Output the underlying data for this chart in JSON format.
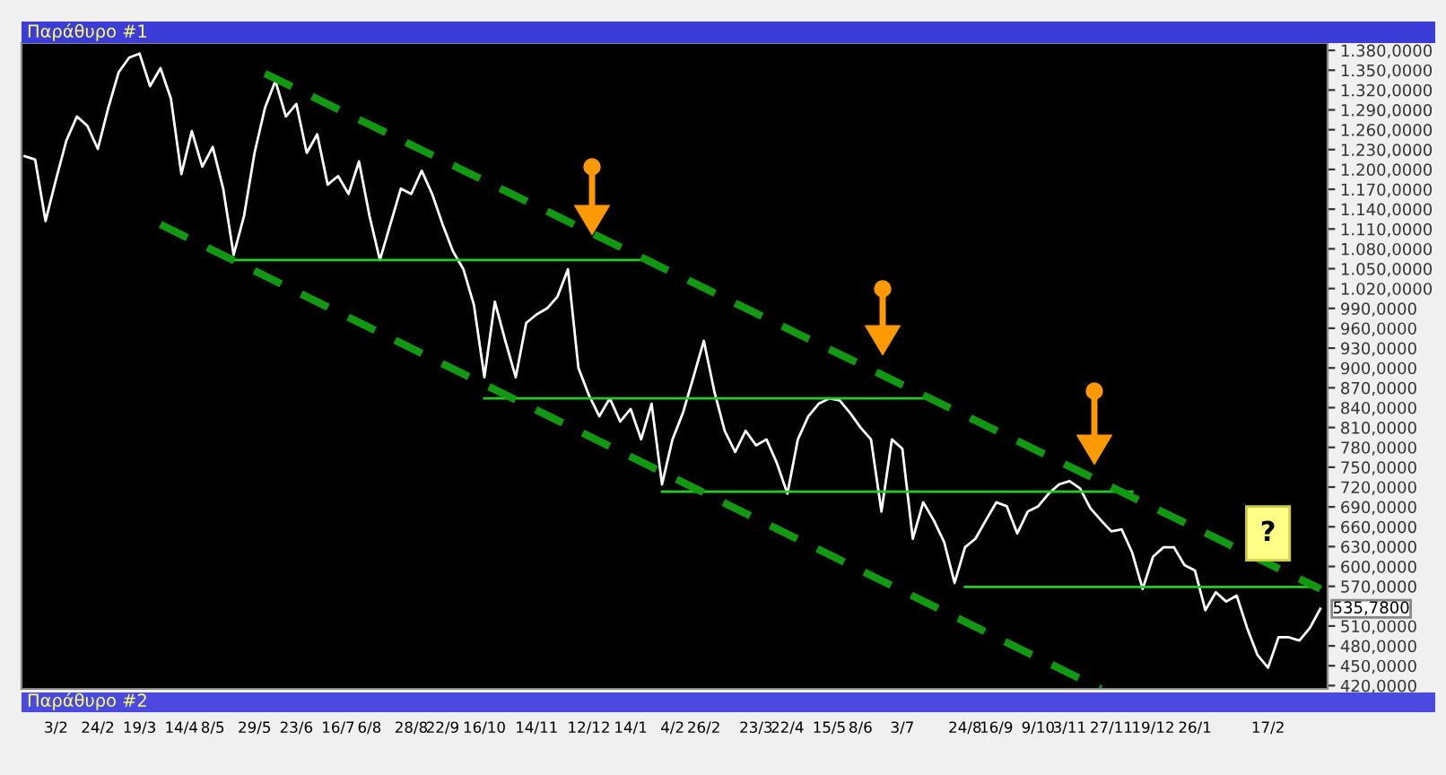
{
  "chart_data": {
    "type": "line",
    "title": "Παράθυρο #1",
    "annotations": [
      "Παράθυρο #2",
      {
        "text": "?",
        "x": "17/2",
        "y": 650
      },
      "535,7800"
    ],
    "categories": [
      null,
      null,
      null,
      "3/2",
      null,
      null,
      null,
      "24/2",
      null,
      null,
      null,
      "19/3",
      null,
      null,
      null,
      "14/4",
      null,
      null,
      "8/5",
      null,
      null,
      null,
      "29/5",
      null,
      null,
      null,
      "23/6",
      null,
      null,
      null,
      "16/7",
      null,
      null,
      "6/8",
      null,
      null,
      null,
      "28/8",
      null,
      null,
      "22/9",
      null,
      null,
      null,
      "16/10",
      null,
      null,
      null,
      null,
      "14/11",
      null,
      null,
      null,
      null,
      "12/12",
      null,
      null,
      null,
      "14/1",
      null,
      null,
      null,
      "4/2",
      null,
      null,
      "26/2",
      null,
      null,
      null,
      null,
      "23/3",
      null,
      null,
      "22/4",
      null,
      null,
      null,
      "15/5",
      null,
      null,
      "8/6",
      null,
      null,
      null,
      "3/7",
      null,
      null,
      null,
      null,
      null,
      "24/8",
      null,
      null,
      "16/9",
      null,
      null,
      null,
      "9/10",
      null,
      null,
      "3/11",
      null,
      null,
      null,
      "27/11",
      null,
      null,
      null,
      "19/12",
      null,
      null,
      null,
      "26/1",
      null,
      null,
      null,
      null,
      null,
      null,
      "17/2",
      null,
      null,
      null,
      null,
      null
    ],
    "series": [
      {
        "color": "#ffffff",
        "line_style": "solid",
        "values": [
          1220,
          1215,
          1122,
          1185,
          1244,
          1280,
          1266,
          1231,
          1293,
          1347,
          1369,
          1375,
          1326,
          1353,
          1307,
          1193,
          1258,
          1204,
          1234,
          1171,
          1071,
          1130,
          1225,
          1293,
          1334,
          1280,
          1299,
          1225,
          1253,
          1177,
          1190,
          1163,
          1212,
          1130,
          1063,
          1117,
          1171,
          1163,
          1198,
          1163,
          1117,
          1076,
          1049,
          995,
          886,
          1000,
          941,
          886,
          968,
          981,
          990,
          1008,
          1049,
          900,
          859,
          827,
          854,
          819,
          838,
          792,
          846,
          724,
          792,
          832,
          886,
          941,
          865,
          805,
          773,
          805,
          783,
          792,
          756,
          710,
          792,
          827,
          846,
          854,
          851,
          832,
          810,
          792,
          683,
          792,
          778,
          642,
          697,
          670,
          637,
          575,
          629,
          642,
          670,
          697,
          691,
          650,
          683,
          691,
          710,
          724,
          729,
          718,
          688,
          670,
          653,
          656,
          621,
          566,
          615,
          629,
          629,
          602,
          594,
          534,
          561,
          547,
          556,
          507,
          466,
          447,
          493,
          493,
          488,
          507,
          536
        ]
      },
      {
        "color": "#22cc22",
        "line_style": "solid",
        "values": [
          null,
          null,
          null,
          null,
          null,
          null,
          null,
          null,
          null,
          null,
          null,
          null,
          null,
          null,
          null,
          null,
          null,
          null,
          null,
          null,
          1063,
          1063,
          1063,
          1063,
          1063,
          1063,
          1063,
          1063,
          1063,
          1063,
          1063,
          1063,
          1063,
          1063,
          1063,
          1063,
          1063,
          1063,
          1063,
          1063,
          1063,
          1063,
          1063,
          1063,
          1063,
          1063,
          1063,
          1063,
          1063,
          1063,
          1063,
          1063,
          1063,
          1063,
          1063,
          1063,
          1063,
          1063,
          1063,
          1063,
          1063,
          null,
          null,
          null,
          null,
          null,
          null,
          null,
          null,
          null,
          null,
          null,
          null,
          null,
          null,
          null,
          null,
          null,
          null,
          null,
          null,
          null,
          null,
          null,
          null,
          null,
          null,
          null,
          null,
          null,
          null,
          null,
          null,
          null,
          null,
          null,
          null,
          null,
          null,
          null,
          null,
          null,
          null,
          null,
          null,
          null,
          null,
          null,
          null,
          null,
          null,
          null,
          null,
          null,
          null,
          null,
          null,
          null,
          null,
          null,
          null,
          null,
          null,
          null,
          null
        ]
      },
      {
        "color": "#22cc22",
        "line_style": "solid",
        "values": [
          null,
          null,
          null,
          null,
          null,
          null,
          null,
          null,
          null,
          null,
          null,
          null,
          null,
          null,
          null,
          null,
          null,
          null,
          null,
          null,
          null,
          null,
          null,
          null,
          null,
          null,
          null,
          null,
          null,
          null,
          null,
          null,
          null,
          null,
          null,
          null,
          null,
          null,
          null,
          null,
          null,
          null,
          null,
          null,
          854,
          854,
          854,
          854,
          854,
          854,
          854,
          854,
          854,
          854,
          854,
          854,
          854,
          854,
          854,
          854,
          854,
          854,
          854,
          854,
          854,
          854,
          854,
          854,
          854,
          854,
          854,
          854,
          854,
          854,
          854,
          854,
          854,
          854,
          854,
          854,
          854,
          854,
          854,
          854,
          854,
          854,
          854,
          854,
          null,
          null,
          null,
          null,
          null,
          null,
          null,
          null,
          null,
          null,
          null,
          null,
          null,
          null,
          null,
          null,
          null,
          null,
          null,
          null,
          null,
          null,
          null,
          null,
          null,
          null,
          null,
          null,
          null,
          null,
          null,
          null,
          null,
          null,
          null,
          null,
          null
        ]
      },
      {
        "color": "#22cc22",
        "line_style": "solid",
        "values": [
          null,
          null,
          null,
          null,
          null,
          null,
          null,
          null,
          null,
          null,
          null,
          null,
          null,
          null,
          null,
          null,
          null,
          null,
          null,
          null,
          null,
          null,
          null,
          null,
          null,
          null,
          null,
          null,
          null,
          null,
          null,
          null,
          null,
          null,
          null,
          null,
          null,
          null,
          null,
          null,
          null,
          null,
          null,
          null,
          null,
          null,
          null,
          null,
          null,
          null,
          null,
          null,
          null,
          null,
          null,
          null,
          null,
          null,
          null,
          null,
          null,
          713,
          713,
          713,
          713,
          713,
          713,
          713,
          713,
          713,
          713,
          713,
          713,
          713,
          713,
          713,
          713,
          713,
          713,
          713,
          713,
          713,
          713,
          713,
          713,
          713,
          713,
          713,
          713,
          713,
          713,
          713,
          713,
          713,
          713,
          713,
          713,
          713,
          713,
          713,
          713,
          713,
          713,
          713,
          713,
          713,
          713,
          null,
          null,
          null,
          null,
          null,
          null,
          null,
          null,
          null,
          null,
          null,
          null,
          null,
          null,
          null,
          null,
          null,
          null
        ]
      },
      {
        "color": "#22cc22",
        "line_style": "solid",
        "values": [
          null,
          null,
          null,
          null,
          null,
          null,
          null,
          null,
          null,
          null,
          null,
          null,
          null,
          null,
          null,
          null,
          null,
          null,
          null,
          null,
          null,
          null,
          null,
          null,
          null,
          null,
          null,
          null,
          null,
          null,
          null,
          null,
          null,
          null,
          null,
          null,
          null,
          null,
          null,
          null,
          null,
          null,
          null,
          null,
          null,
          null,
          null,
          null,
          null,
          null,
          null,
          null,
          null,
          null,
          null,
          null,
          null,
          null,
          null,
          null,
          null,
          null,
          null,
          null,
          null,
          null,
          null,
          null,
          null,
          null,
          null,
          null,
          null,
          null,
          null,
          null,
          null,
          null,
          null,
          null,
          null,
          null,
          null,
          null,
          null,
          null,
          null,
          null,
          null,
          null,
          569,
          569,
          569,
          569,
          569,
          569,
          569,
          569,
          569,
          569,
          569,
          569,
          569,
          569,
          569,
          569,
          569,
          569,
          569,
          569,
          569,
          569,
          569,
          569,
          569,
          569,
          569,
          569,
          569,
          569,
          569,
          569,
          569,
          569,
          569
        ]
      },
      {
        "color": "#119911",
        "line_style": "dashed",
        "values": [
          null,
          null,
          null,
          null,
          null,
          null,
          null,
          null,
          null,
          null,
          null,
          null,
          null,
          null,
          null,
          null,
          null,
          null,
          null,
          null,
          null,
          null,
          null,
          1345,
          null,
          null,
          null,
          null,
          null,
          null,
          null,
          null,
          null,
          null,
          null,
          null,
          null,
          null,
          null,
          null,
          null,
          null,
          null,
          null,
          null,
          null,
          null,
          null,
          null,
          null,
          null,
          null,
          null,
          null,
          null,
          null,
          null,
          null,
          null,
          null,
          null,
          null,
          null,
          null,
          null,
          null,
          null,
          null,
          null,
          null,
          null,
          null,
          null,
          null,
          null,
          null,
          null,
          null,
          null,
          null,
          null,
          null,
          null,
          null,
          null,
          null,
          null,
          null,
          null,
          null,
          null,
          null,
          null,
          null,
          null,
          null,
          null,
          null,
          null,
          null,
          null,
          null,
          null,
          null,
          null,
          null,
          null,
          null,
          null,
          null,
          null,
          null,
          null,
          null,
          null,
          null,
          null,
          null,
          null,
          null,
          null,
          null,
          null,
          null,
          566
        ]
      },
      {
        "color": "#119911",
        "line_style": "dashed",
        "values": [
          null,
          null,
          null,
          null,
          null,
          null,
          null,
          null,
          null,
          null,
          null,
          null,
          null,
          1117,
          null,
          null,
          null,
          null,
          null,
          null,
          null,
          null,
          null,
          null,
          null,
          null,
          null,
          null,
          null,
          null,
          null,
          null,
          null,
          null,
          null,
          null,
          null,
          null,
          null,
          null,
          null,
          null,
          null,
          null,
          null,
          null,
          null,
          null,
          null,
          null,
          null,
          null,
          null,
          null,
          null,
          null,
          null,
          null,
          null,
          null,
          null,
          null,
          null,
          null,
          null,
          null,
          null,
          null,
          null,
          null,
          null,
          null,
          null,
          null,
          null,
          null,
          null,
          null,
          null,
          null,
          null,
          null,
          null,
          null,
          null,
          null,
          null,
          null,
          null,
          null,
          null,
          null,
          null,
          null,
          null,
          null,
          null,
          null,
          null,
          null,
          null,
          null,
          null,
          415,
          null,
          null,
          null,
          null,
          null,
          null,
          null,
          null,
          null,
          null,
          null,
          null,
          null,
          null,
          null,
          null,
          null,
          null,
          null,
          null,
          null
        ]
      }
    ],
    "ylim": [
      415,
      1391
    ],
    "yticks": [
      {
        "value": 420,
        "label": "420,0000"
      },
      {
        "value": 450,
        "label": "450,0000"
      },
      {
        "value": 480,
        "label": "480,0000"
      },
      {
        "value": 510,
        "label": "510,0000"
      },
      {
        "value": 570,
        "label": "570,0000"
      },
      {
        "value": 600,
        "label": "600,0000"
      },
      {
        "value": 630,
        "label": "630,0000"
      },
      {
        "value": 660,
        "label": "660,0000"
      },
      {
        "value": 690,
        "label": "690,0000"
      },
      {
        "value": 720,
        "label": "720,0000"
      },
      {
        "value": 750,
        "label": "750,0000"
      },
      {
        "value": 780,
        "label": "780,0000"
      },
      {
        "value": 810,
        "label": "810,0000"
      },
      {
        "value": 840,
        "label": "840,0000"
      },
      {
        "value": 870,
        "label": "870,0000"
      },
      {
        "value": 900,
        "label": "900,0000"
      },
      {
        "value": 930,
        "label": "930,0000"
      },
      {
        "value": 960,
        "label": "960,0000"
      },
      {
        "value": 990,
        "label": "990,0000"
      },
      {
        "value": 1020,
        "label": "1.020,0000"
      },
      {
        "value": 1050,
        "label": "1.050,0000"
      },
      {
        "value": 1080,
        "label": "1.080,0000"
      },
      {
        "value": 1110,
        "label": "1.110,0000"
      },
      {
        "value": 1140,
        "label": "1.140,0000"
      },
      {
        "value": 1170,
        "label": "1.170,0000"
      },
      {
        "value": 1200,
        "label": "1.200,0000"
      },
      {
        "value": 1230,
        "label": "1.230,0000"
      },
      {
        "value": 1260,
        "label": "1.260,0000"
      },
      {
        "value": 1290,
        "label": "1.290,0000"
      },
      {
        "value": 1320,
        "label": "1.320,0000"
      },
      {
        "value": 1350,
        "label": "1.350,0000"
      },
      {
        "value": 1380,
        "label": "1.380,0000"
      }
    ]
  }
}
